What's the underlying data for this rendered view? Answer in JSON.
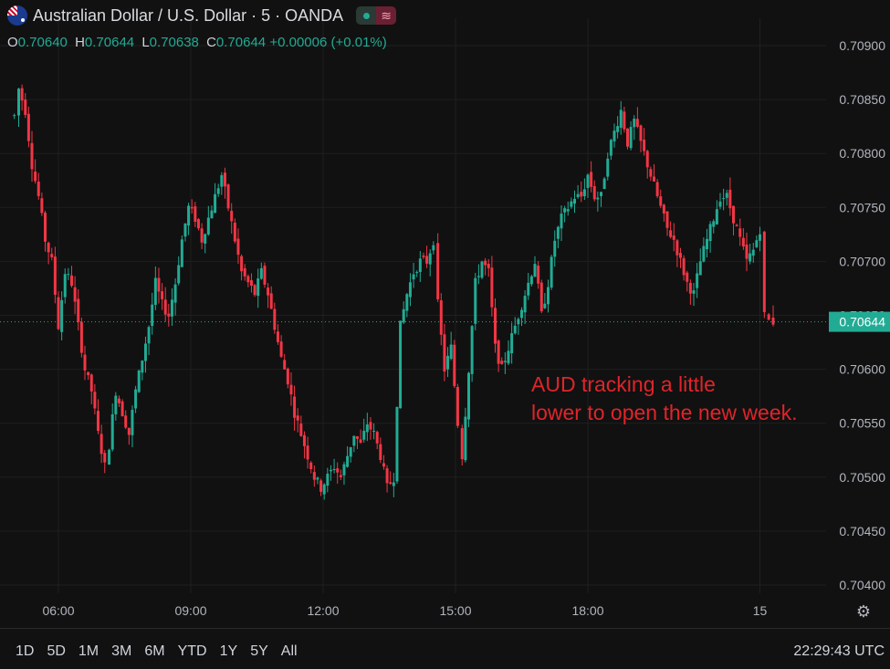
{
  "header": {
    "title": "Australian Dollar / U.S. Dollar · 5 · OANDA",
    "pill_icon": "≋"
  },
  "ohlc": {
    "o_key": "O",
    "o": "0.70640",
    "h_key": "H",
    "h": "0.70644",
    "l_key": "L",
    "l": "0.70638",
    "c_key": "C",
    "c": "0.70644",
    "change": "+0.00006 (+0.01%)"
  },
  "annotation": {
    "line1": "AUD tracking a little",
    "line2": "lower to open the new week."
  },
  "toolbar": {
    "ranges": [
      "1D",
      "5D",
      "1M",
      "3M",
      "6M",
      "YTD",
      "1Y",
      "5Y",
      "All"
    ],
    "clock": "22:29:43 UTC"
  },
  "colors": {
    "up": "#22ab94",
    "down": "#f23645",
    "grid": "#1f1f1f",
    "last_price_bg": "#22ab94",
    "annotation": "#e0242a"
  },
  "chart_data": {
    "type": "candlestick",
    "title": "Australian Dollar / U.S. Dollar · 5 · OANDA",
    "ylim": [
      0.7039,
      0.7092
    ],
    "yticks": [
      "0.70900",
      "0.70850",
      "0.70800",
      "0.70750",
      "0.70700",
      "0.70650",
      "0.70600",
      "0.70550",
      "0.70500",
      "0.70450",
      "0.70400"
    ],
    "xticks": [
      {
        "label": "06:00",
        "hour": 6
      },
      {
        "label": "09:00",
        "hour": 9
      },
      {
        "label": "12:00",
        "hour": 12
      },
      {
        "label": "15:00",
        "hour": 15
      },
      {
        "label": "18:00",
        "hour": 18
      },
      {
        "label": "15",
        "hour": 21.9
      }
    ],
    "last_price": "0.70644",
    "path_close": [
      [
        5.0,
        0.70835
      ],
      [
        5.1,
        0.7086
      ],
      [
        5.25,
        0.7084
      ],
      [
        5.4,
        0.7079
      ],
      [
        5.55,
        0.7076
      ],
      [
        5.7,
        0.7072
      ],
      [
        5.85,
        0.707
      ],
      [
        6.0,
        0.7064
      ],
      [
        6.15,
        0.7069
      ],
      [
        6.3,
        0.7068
      ],
      [
        6.45,
        0.7064
      ],
      [
        6.6,
        0.706
      ],
      [
        6.75,
        0.7058
      ],
      [
        6.9,
        0.7054
      ],
      [
        7.05,
        0.7051
      ],
      [
        7.15,
        0.7053
      ],
      [
        7.3,
        0.7058
      ],
      [
        7.45,
        0.7056
      ],
      [
        7.6,
        0.7054
      ],
      [
        7.75,
        0.7058
      ],
      [
        7.9,
        0.7061
      ],
      [
        8.05,
        0.7064
      ],
      [
        8.2,
        0.7068
      ],
      [
        8.35,
        0.7066
      ],
      [
        8.5,
        0.7065
      ],
      [
        8.65,
        0.7068
      ],
      [
        8.8,
        0.7072
      ],
      [
        8.95,
        0.7075
      ],
      [
        9.1,
        0.7074
      ],
      [
        9.25,
        0.7072
      ],
      [
        9.4,
        0.7074
      ],
      [
        9.55,
        0.7076
      ],
      [
        9.7,
        0.7078
      ],
      [
        9.85,
        0.7075
      ],
      [
        10.0,
        0.7072
      ],
      [
        10.15,
        0.7069
      ],
      [
        10.3,
        0.7068
      ],
      [
        10.45,
        0.7067
      ],
      [
        10.6,
        0.7069
      ],
      [
        10.75,
        0.7067
      ],
      [
        10.9,
        0.7064
      ],
      [
        11.05,
        0.7061
      ],
      [
        11.2,
        0.7059
      ],
      [
        11.35,
        0.7056
      ],
      [
        11.5,
        0.7054
      ],
      [
        11.65,
        0.7052
      ],
      [
        11.8,
        0.705
      ],
      [
        11.95,
        0.7049
      ],
      [
        12.1,
        0.705
      ],
      [
        12.25,
        0.7051
      ],
      [
        12.4,
        0.705
      ],
      [
        12.55,
        0.7052
      ],
      [
        12.7,
        0.7054
      ],
      [
        12.85,
        0.7053
      ],
      [
        13.0,
        0.7055
      ],
      [
        13.15,
        0.7054
      ],
      [
        13.3,
        0.7052
      ],
      [
        13.45,
        0.7049
      ],
      [
        13.6,
        0.705
      ],
      [
        13.75,
        0.7064
      ],
      [
        13.9,
        0.7067
      ],
      [
        14.05,
        0.7069
      ],
      [
        14.2,
        0.707
      ],
      [
        14.35,
        0.707
      ],
      [
        14.5,
        0.7072
      ],
      [
        14.6,
        0.7066
      ],
      [
        14.75,
        0.706
      ],
      [
        14.9,
        0.7062
      ],
      [
        15.05,
        0.7055
      ],
      [
        15.15,
        0.7052
      ],
      [
        15.3,
        0.706
      ],
      [
        15.45,
        0.7068
      ],
      [
        15.6,
        0.707
      ],
      [
        15.75,
        0.7069
      ],
      [
        15.9,
        0.7062
      ],
      [
        16.05,
        0.706
      ],
      [
        16.2,
        0.7062
      ],
      [
        16.35,
        0.7064
      ],
      [
        16.5,
        0.7066
      ],
      [
        16.65,
        0.7068
      ],
      [
        16.8,
        0.707
      ],
      [
        16.95,
        0.7065
      ],
      [
        17.1,
        0.7068
      ],
      [
        17.25,
        0.7072
      ],
      [
        17.4,
        0.7074
      ],
      [
        17.55,
        0.7075
      ],
      [
        17.7,
        0.7076
      ],
      [
        17.85,
        0.7076
      ],
      [
        18.0,
        0.7078
      ],
      [
        18.15,
        0.7076
      ],
      [
        18.3,
        0.7076
      ],
      [
        18.45,
        0.708
      ],
      [
        18.6,
        0.7082
      ],
      [
        18.75,
        0.7084
      ],
      [
        18.9,
        0.7081
      ],
      [
        19.05,
        0.7083
      ],
      [
        19.2,
        0.7081
      ],
      [
        19.35,
        0.7079
      ],
      [
        19.5,
        0.7077
      ],
      [
        19.65,
        0.7075
      ],
      [
        19.8,
        0.7073
      ],
      [
        19.95,
        0.7072
      ],
      [
        20.1,
        0.707
      ],
      [
        20.25,
        0.7068
      ],
      [
        20.4,
        0.7067
      ],
      [
        20.55,
        0.707
      ],
      [
        20.7,
        0.7072
      ],
      [
        20.85,
        0.7074
      ],
      [
        21.0,
        0.7076
      ],
      [
        21.15,
        0.7076
      ],
      [
        21.3,
        0.7074
      ],
      [
        21.45,
        0.7072
      ],
      [
        21.6,
        0.707
      ],
      [
        21.75,
        0.7071
      ],
      [
        21.9,
        0.7073
      ],
      [
        22.0,
        0.7065
      ],
      [
        22.1,
        0.70645
      ],
      [
        22.2,
        0.70644
      ],
      [
        22.3,
        0.70644
      ]
    ],
    "gap": [
      21.95,
      22.0
    ]
  }
}
